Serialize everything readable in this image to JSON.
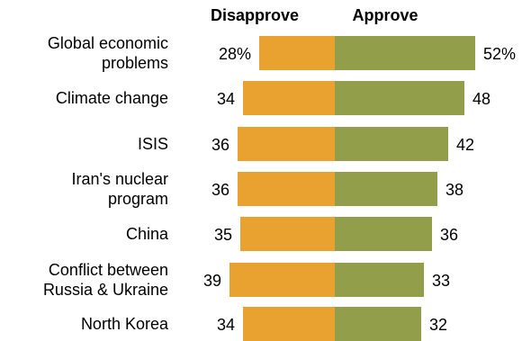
{
  "chart_data": {
    "type": "bar",
    "layout": "diverging",
    "categories": [
      [
        "Global economic",
        "problems"
      ],
      [
        "Climate change"
      ],
      [
        "ISIS"
      ],
      [
        "Iran's nuclear",
        "program"
      ],
      [
        "China"
      ],
      [
        "Conflict between",
        "Russia & Ukraine"
      ],
      [
        "North Korea"
      ]
    ],
    "series": [
      {
        "name": "Disapprove",
        "color": "#E9A230",
        "values": [
          28,
          34,
          36,
          36,
          35,
          39,
          34
        ],
        "labels": [
          "28%",
          "34",
          "36",
          "36",
          "35",
          "39",
          "34"
        ]
      },
      {
        "name": "Approve",
        "color": "#939E4B",
        "values": [
          52,
          48,
          42,
          38,
          36,
          33,
          32
        ],
        "labels": [
          "52%",
          "48",
          "42",
          "38",
          "36",
          "33",
          "32"
        ]
      }
    ],
    "title": "",
    "xlabel": "",
    "ylabel": "",
    "xlim": [
      -40,
      55
    ],
    "grid": false,
    "legend": "top-center"
  }
}
